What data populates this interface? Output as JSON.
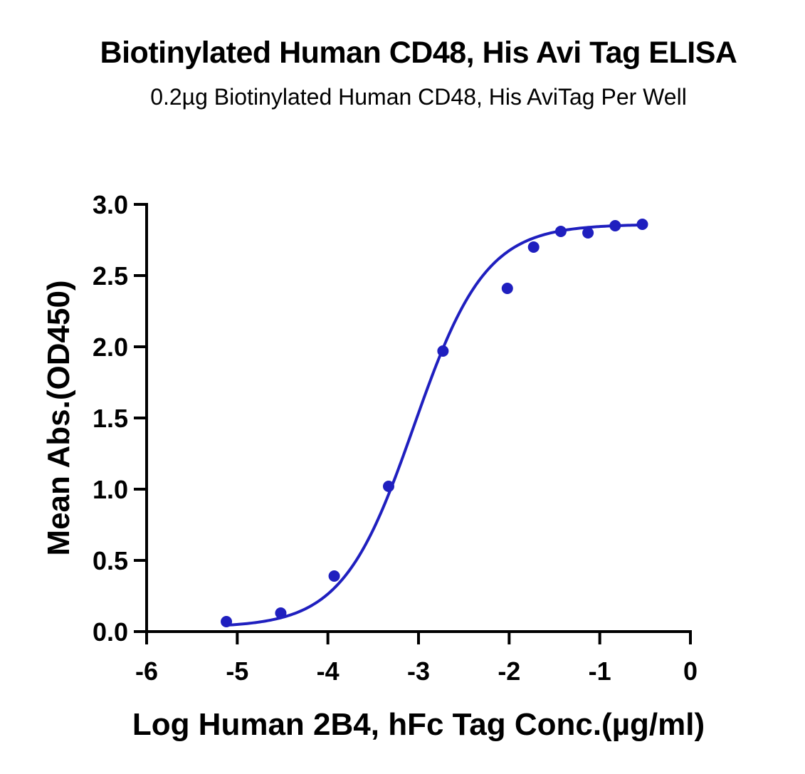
{
  "chart_data": {
    "type": "scatter",
    "title": "Biotinylated Human CD48, His Avi Tag ELISA",
    "subtitle": "0.2µg Biotinylated Human CD48, His AviTag Per Well",
    "xlabel": "Log Human 2B4, hFc Tag Conc.(µg/ml)",
    "ylabel": "Mean Abs.(OD450)",
    "xlim": [
      -6,
      0
    ],
    "ylim": [
      0,
      3.0
    ],
    "x_ticks": [
      -6,
      -5,
      -4,
      -3,
      -2,
      -1,
      0
    ],
    "x_tick_labels": [
      "-6",
      "-5",
      "-4",
      "-3",
      "-2",
      "-1",
      "0"
    ],
    "y_ticks": [
      0,
      0.5,
      1.0,
      1.5,
      2.0,
      2.5,
      3.0
    ],
    "y_tick_labels": [
      "0.0",
      "0.5",
      "1.0",
      "1.5",
      "2.0",
      "2.5",
      "3.0"
    ],
    "grid": false,
    "legend": "none",
    "color": "#1f1fbf",
    "series": [
      {
        "x": [
          -5.12,
          -4.52,
          -3.93,
          -3.33,
          -2.73,
          -2.02,
          -1.73,
          -1.43,
          -1.13,
          -0.83,
          -0.53
        ],
        "y": [
          0.07,
          0.13,
          0.39,
          1.02,
          1.97,
          2.41,
          2.7,
          2.81,
          2.8,
          2.85,
          2.86
        ]
      }
    ],
    "fit": {
      "type": "4PL",
      "bottom": 0.03,
      "top": 2.86,
      "log_ec50": -3.05,
      "hill_slope": 1.1,
      "x_range": [
        -5.12,
        -0.53
      ]
    }
  }
}
